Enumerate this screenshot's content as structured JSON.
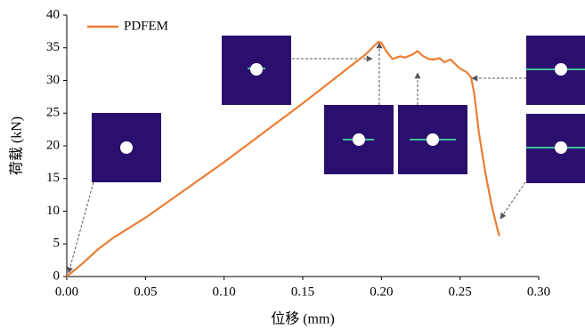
{
  "chart_data": {
    "type": "line",
    "xlabel": "位移 (mm)",
    "ylabel": "荷载 (kN)",
    "x": [
      0,
      0.01,
      0.02,
      0.03,
      0.05,
      0.1,
      0.15,
      0.19,
      0.198,
      0.2,
      0.203,
      0.207,
      0.212,
      0.215,
      0.22,
      0.223,
      0.226,
      0.23,
      0.233,
      0.237,
      0.24,
      0.244,
      0.247,
      0.25,
      0.254,
      0.257,
      0.259,
      0.262,
      0.266,
      0.27,
      0.273,
      0.275
    ],
    "series": [
      {
        "name": "PDFEM",
        "color": "#ed7d31",
        "values": [
          0,
          2,
          4.2,
          6,
          9,
          17.5,
          26.5,
          34,
          35.9,
          35.8,
          34.5,
          33.3,
          33.7,
          33.5,
          34,
          34.5,
          33.8,
          33.3,
          33.2,
          33.4,
          32.8,
          33.2,
          32.5,
          31.8,
          31.3,
          30.5,
          28,
          22,
          16,
          11,
          8,
          6.2
        ]
      }
    ],
    "xlim": [
      0,
      0.3
    ],
    "xticks": [
      {
        "value": 0,
        "label": "0.00"
      },
      0.05,
      {
        "value": 0.1,
        "label": "0.10"
      },
      0.15,
      {
        "value": 0.2,
        "label": "0.20"
      },
      0.25,
      {
        "value": 0.3,
        "label": "0.30"
      }
    ],
    "ylim": [
      0,
      40
    ],
    "yticks": [
      0,
      5,
      10,
      15,
      20,
      25,
      30,
      35,
      40
    ],
    "legend": "upper left"
  }
}
